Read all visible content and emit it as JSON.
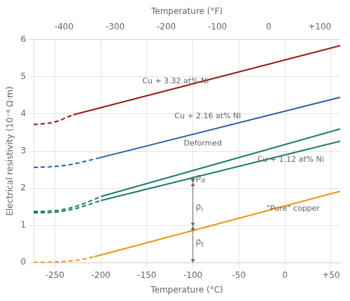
{
  "chart_data": {
    "type": "line",
    "xlabel": "Temperature (°C)",
    "x2label": "Temperature (°F)",
    "ylabel": "Electrical resistivity (10⁻⁸ Ω·m)",
    "xlim": [
      -273,
      60
    ],
    "xticks": [
      -250,
      -200,
      -150,
      -100,
      -50,
      0,
      {
        "value": 50,
        "label": "+50"
      }
    ],
    "x2lim": [
      -459.4,
      140
    ],
    "x2ticks": [
      -400,
      -300,
      -200,
      -100,
      0,
      {
        "value": 100,
        "label": "+100"
      }
    ],
    "ylim": [
      0,
      6
    ],
    "yticks": [
      0,
      1,
      2,
      3,
      4,
      5,
      6
    ],
    "grid": true,
    "series": [
      {
        "color": "#e8960a",
        "line_style": "dashed",
        "x": [
          -273,
          -265,
          -255,
          -245,
          -235,
          -225,
          -215,
          -207
        ],
        "values": [
          0.006,
          0.007,
          0.012,
          0.022,
          0.04,
          0.068,
          0.11,
          0.16
        ]
      },
      {
        "color": "#e8960a",
        "line_style": "solid",
        "x": [
          -207,
          60
        ],
        "values": [
          0.16,
          1.92
        ]
      },
      {
        "color": "#1a7a6a",
        "line_style": "dashed",
        "x": [
          -273,
          -265,
          -255,
          -245,
          -235,
          -225,
          -215,
          -200
        ],
        "values": [
          1.34,
          1.34,
          1.35,
          1.37,
          1.41,
          1.47,
          1.55,
          1.67
        ]
      },
      {
        "color": "#1a7a6a",
        "line_style": "solid",
        "x": [
          -200,
          60
        ],
        "values": [
          1.67,
          3.27
        ]
      },
      {
        "color": "#1a7a6a",
        "line_style": "dashed",
        "x": [
          -273,
          -265,
          -255,
          -245,
          -235,
          -225,
          -215,
          -200
        ],
        "values": [
          1.38,
          1.38,
          1.39,
          1.41,
          1.46,
          1.53,
          1.62,
          1.78
        ]
      },
      {
        "color": "#1a7a6a",
        "line_style": "solid",
        "x": [
          -200,
          60
        ],
        "values": [
          1.78,
          3.6
        ]
      },
      {
        "color": "#1e5ea8",
        "line_style": "dashed",
        "x": [
          -273,
          -265,
          -255,
          -245,
          -235,
          -225,
          -215,
          -205
        ],
        "values": [
          2.56,
          2.57,
          2.58,
          2.6,
          2.63,
          2.68,
          2.74,
          2.8
        ]
      },
      {
        "color": "#1e5ea8",
        "line_style": "solid",
        "x": [
          -205,
          60
        ],
        "values": [
          2.8,
          4.45
        ]
      },
      {
        "color": "#9b1515",
        "line_style": "dashed",
        "x": [
          -273,
          -265,
          -255,
          -245,
          -240,
          -230
        ],
        "values": [
          3.72,
          3.73,
          3.76,
          3.82,
          3.88,
          3.98
        ]
      },
      {
        "color": "#9b1515",
        "line_style": "solid",
        "x": [
          -230,
          60
        ],
        "values": [
          3.98,
          5.84
        ]
      }
    ],
    "annotations": [
      {
        "text": "Cu + 3.32 at% Ni",
        "x": -155,
        "y": 4.82
      },
      {
        "text": "Cu + 2.16 at% Ni",
        "x": -120,
        "y": 3.88
      },
      {
        "text": "Deformed",
        "x": -110,
        "y": 3.15
      },
      {
        "text": "Cu + 1.12 at% Ni",
        "x": -30,
        "y": 2.72
      },
      {
        "text": "\"Pure\" copper",
        "x": -20,
        "y": 1.4
      }
    ],
    "subscript_labels": [
      {
        "text": "ρd",
        "x": -97,
        "y": 2.28
      },
      {
        "text": "ρi",
        "x": -97,
        "y": 1.5
      },
      {
        "text": "ρt",
        "x": -97,
        "y": 0.55
      }
    ],
    "arrows": [
      {
        "x": -100,
        "y_from": 2.32,
        "y_to": 2.15
      },
      {
        "x": -100,
        "y_from": 2.15,
        "y_to": 0.98
      },
      {
        "x": -100,
        "y_from": 0.98,
        "y_to": 0.0
      }
    ]
  }
}
